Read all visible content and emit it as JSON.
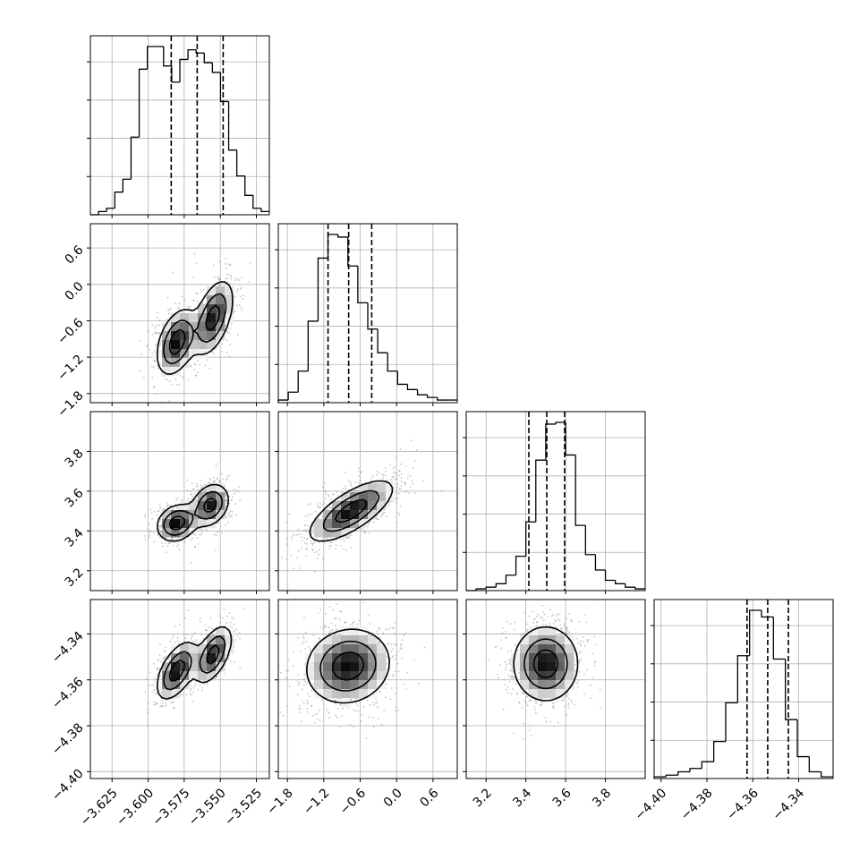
{
  "chart_data": {
    "type": "corner",
    "parameters": [
      {
        "ticks": [
          "-3.625",
          "-3.600",
          "-3.575",
          "-3.550",
          "-3.525"
        ],
        "tick_values": [
          -3.625,
          -3.6,
          -3.575,
          -3.55,
          -3.525
        ],
        "range": [
          -3.64,
          -3.516
        ],
        "quantiles": [
          -3.584,
          -3.566,
          -3.548
        ],
        "histogram": [
          0,
          1,
          2,
          7,
          11,
          24,
          45,
          52,
          52,
          46,
          41,
          48,
          51,
          50,
          47,
          44,
          35,
          20,
          12,
          6,
          2,
          1
        ]
      },
      {
        "ticks": [
          "-1.8",
          "-1.2",
          "-0.6",
          "0.0",
          "0.6"
        ],
        "tick_values": [
          -1.8,
          -1.2,
          -0.6,
          0.0,
          0.6
        ],
        "range": [
          -1.95,
          1.0
        ],
        "quantiles": [
          -1.13,
          -0.79,
          -0.41
        ],
        "histogram": [
          1,
          4,
          12,
          31,
          55,
          64,
          63,
          52,
          38,
          28,
          19,
          12,
          7,
          5,
          3,
          2,
          1,
          1
        ]
      },
      {
        "ticks": [
          "3.2",
          "3.4",
          "3.6",
          "3.8"
        ],
        "tick_values": [
          3.2,
          3.4,
          3.6,
          3.8
        ],
        "range": [
          3.1,
          4.0
        ],
        "quantiles": [
          3.415,
          3.505,
          3.595
        ],
        "histogram": [
          0,
          1,
          2,
          4,
          9,
          20,
          40,
          76,
          97,
          98,
          79,
          38,
          21,
          12,
          6,
          4,
          2,
          1
        ]
      },
      {
        "ticks": [
          "-4.40",
          "-4.38",
          "-4.36",
          "-4.34"
        ],
        "tick_values": [
          -4.4,
          -4.38,
          -4.36,
          -4.34
        ],
        "range": [
          -4.403,
          -4.325
        ],
        "quantiles": [
          -4.3625,
          -4.3535,
          -4.3445
        ],
        "histogram": [
          1,
          2,
          4,
          6,
          10,
          22,
          45,
          73,
          100,
          96,
          71,
          35,
          13,
          4,
          1
        ]
      }
    ],
    "joint": [
      {
        "row": 1,
        "col": 0,
        "modes": [
          {
            "x": -3.58,
            "y": -0.95,
            "sx": 0.0072,
            "sy": 0.28,
            "rho": 0.4,
            "w": 1.0
          },
          {
            "x": -3.555,
            "y": -0.55,
            "sx": 0.0072,
            "sy": 0.32,
            "rho": 0.5,
            "w": 0.95
          }
        ]
      },
      {
        "row": 2,
        "col": 0,
        "modes": [
          {
            "x": -3.58,
            "y": 3.44,
            "sx": 0.0072,
            "sy": 0.048,
            "rho": 0.2,
            "w": 1.0
          },
          {
            "x": -3.557,
            "y": 3.53,
            "sx": 0.0067,
            "sy": 0.055,
            "rho": 0.25,
            "w": 0.95
          }
        ]
      },
      {
        "row": 2,
        "col": 1,
        "modes": [
          {
            "x": -0.75,
            "y": 3.5,
            "sx": 0.36,
            "sy": 0.08,
            "rho": 0.72,
            "w": 1.0
          }
        ]
      },
      {
        "row": 3,
        "col": 0,
        "modes": [
          {
            "x": -3.58,
            "y": -4.356,
            "sx": 0.0072,
            "sy": 0.0065,
            "rho": 0.55,
            "w": 1.0
          },
          {
            "x": -3.555,
            "y": -4.349,
            "sx": 0.0067,
            "sy": 0.0065,
            "rho": 0.55,
            "w": 0.95
          }
        ]
      },
      {
        "row": 3,
        "col": 1,
        "modes": [
          {
            "x": -0.8,
            "y": -4.354,
            "sx": 0.36,
            "sy": 0.0085,
            "rho": 0.1,
            "w": 1.0
          }
        ]
      },
      {
        "row": 3,
        "col": 2,
        "modes": [
          {
            "x": 3.5,
            "y": -4.353,
            "sx": 0.085,
            "sy": 0.0085,
            "rho": 0.0,
            "w": 1.0
          }
        ]
      }
    ],
    "grid": true,
    "colors": {
      "line": "#000000",
      "grid": "#b0b0b0",
      "points": "#7f7f7f"
    }
  }
}
